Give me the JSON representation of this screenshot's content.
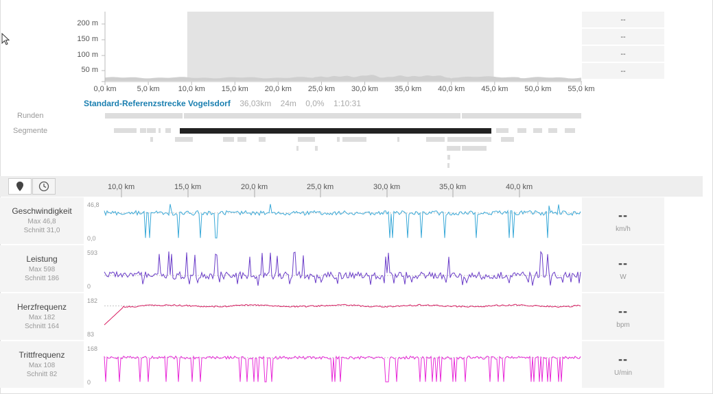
{
  "elevation": {
    "y_labels": [
      "200 m",
      "150 m",
      "100 m",
      "50 m"
    ],
    "x_labels": [
      "0,0 km",
      "5,0 km",
      "10,0 km",
      "15,0 km",
      "20,0 km",
      "25,0 km",
      "30,0 km",
      "35,0 km",
      "40,0 km",
      "45,0 km",
      "50,0 km",
      "55,0 km"
    ],
    "side_values": [
      "--",
      "--",
      "--",
      "--"
    ],
    "selection_km": [
      9.5,
      44.9
    ],
    "area_color": "#cfcfcf",
    "selection_color": "#e3e3e3"
  },
  "segment": {
    "name": "Standard-Referenzstrecke Vogelsdorf",
    "distance": "36,03km",
    "elevation": "24m",
    "grade": "0,0%",
    "time": "1:10:31",
    "name_color": "#1a7fb0"
  },
  "rows": {
    "laps_label": "Runden",
    "segments_label": "Segmente"
  },
  "toolbar": {
    "distance_icon": "map-pin-icon",
    "time_icon": "clock-icon"
  },
  "distance_axis": {
    "labels": [
      "10,0 km",
      "15,0 km",
      "20,0 km",
      "25,0 km",
      "30,0 km",
      "35,0 km",
      "40,0 km"
    ]
  },
  "metrics": [
    {
      "name": "Geschwindigkeit",
      "max": "Max 46,8",
      "avg": "Schnitt 31,0",
      "top": "46,8",
      "bottom": "0,0",
      "value": "--",
      "unit": "km/h",
      "color": "#3aa9d8"
    },
    {
      "name": "Leistung",
      "max": "Max 598",
      "avg": "Schnitt 186",
      "top": "593",
      "bottom": "0",
      "value": "--",
      "unit": "W",
      "color": "#6a3cc8"
    },
    {
      "name": "Herzfrequenz",
      "max": "Max 182",
      "avg": "Schnitt 164",
      "top": "182",
      "bottom": "83",
      "value": "--",
      "unit": "bpm",
      "color": "#d81b60"
    },
    {
      "name": "Trittfrequenz",
      "max": "Max 108",
      "avg": "Schnitt 82",
      "top": "168",
      "bottom": "0",
      "value": "--",
      "unit": "U/min",
      "color": "#e829d8"
    }
  ]
}
